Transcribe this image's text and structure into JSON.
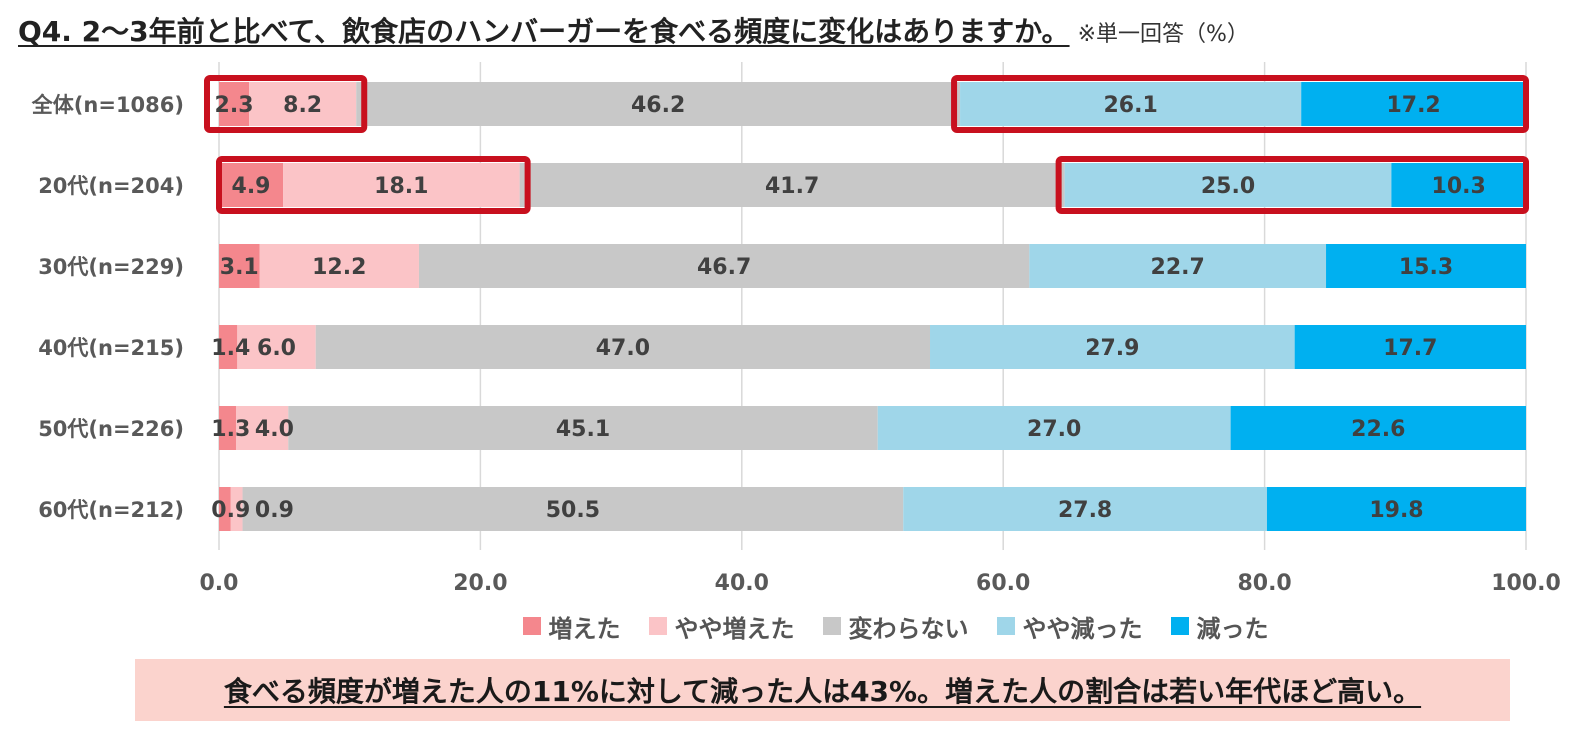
{
  "title": {
    "main": "Q4. 2～3年前と比べて、飲食店のハンバーガーを食べる頻度に変化はありますか。",
    "note": "※単一回答（%）"
  },
  "summary": "食べる頻度が増えた人の11%に対して減った人は43%。増えた人の割合は若い年代ほど高い。",
  "colors": {
    "increased": "#f4878d",
    "slightly_increased": "#fbc4c7",
    "unchanged": "#c8c8c8",
    "slightly_decreased": "#9fd6e9",
    "decreased": "#00b0f0",
    "highlight_box": "#c8101e",
    "grid": "#d9d9d9",
    "axis_text": "#595959"
  },
  "chart_data": {
    "type": "bar",
    "orientation": "horizontal",
    "stacked": true,
    "categories": [
      "全体(n=1086)",
      "20代(n=204)",
      "30代(n=229)",
      "40代(n=215)",
      "50代(n=226)",
      "60代(n=212)"
    ],
    "series": [
      {
        "name": "増えた",
        "values": [
          2.3,
          4.9,
          3.1,
          1.4,
          1.3,
          0.9
        ]
      },
      {
        "name": "やや増えた",
        "values": [
          8.2,
          18.1,
          12.2,
          6.0,
          4.0,
          0.9
        ]
      },
      {
        "name": "変わらない",
        "values": [
          46.2,
          41.7,
          46.7,
          47.0,
          45.1,
          50.5
        ]
      },
      {
        "name": "やや減った",
        "values": [
          26.1,
          25.0,
          22.7,
          27.9,
          27.0,
          27.8
        ]
      },
      {
        "name": "減った",
        "values": [
          17.2,
          10.3,
          15.3,
          17.7,
          22.6,
          19.8
        ]
      }
    ],
    "value_labels": [
      [
        "2.3",
        "8.2",
        "46.2",
        "26.1",
        "17.2"
      ],
      [
        "4.9",
        "18.1",
        "41.7",
        "25.0",
        "10.3"
      ],
      [
        "3.1",
        "12.2",
        "46.7",
        "22.7",
        "15.3"
      ],
      [
        "1.4",
        "6.0",
        "47.0",
        "27.9",
        "17.7"
      ],
      [
        "1.3",
        "4.0",
        "45.1",
        "27.0",
        "22.6"
      ],
      [
        "0.9",
        "0.9",
        "50.5",
        "27.8",
        "19.8"
      ]
    ],
    "xlim": [
      0,
      100
    ],
    "xticks": [
      "0.0",
      "20.0",
      "40.0",
      "60.0",
      "80.0",
      "100.0"
    ],
    "grid": true,
    "legend_position": "bottom",
    "highlighted_rows": [
      0,
      1
    ]
  }
}
